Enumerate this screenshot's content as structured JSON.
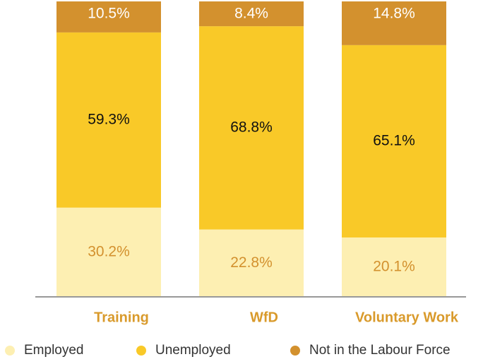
{
  "chart_data": {
    "type": "stacked_bar",
    "categories": [
      "Training",
      "WfD",
      "Voluntary Work"
    ],
    "ylim": [
      0,
      100
    ],
    "series": [
      {
        "name": "Employed",
        "color": "#fdefb2",
        "values": [
          30.2,
          22.8,
          20.1
        ],
        "value_labels": [
          "30.2%",
          "22.8%",
          "20.1%"
        ]
      },
      {
        "name": "Unemployed",
        "color": "#f9c928",
        "values": [
          59.3,
          68.8,
          65.1
        ],
        "value_labels": [
          "59.3%",
          "68.8%",
          "65.1%"
        ]
      },
      {
        "name": "Not in the Labour Force",
        "color": "#d3912e",
        "values": [
          10.5,
          8.4,
          14.8
        ],
        "value_labels": [
          "10.5%",
          "8.4%",
          "14.8%"
        ]
      }
    ]
  }
}
